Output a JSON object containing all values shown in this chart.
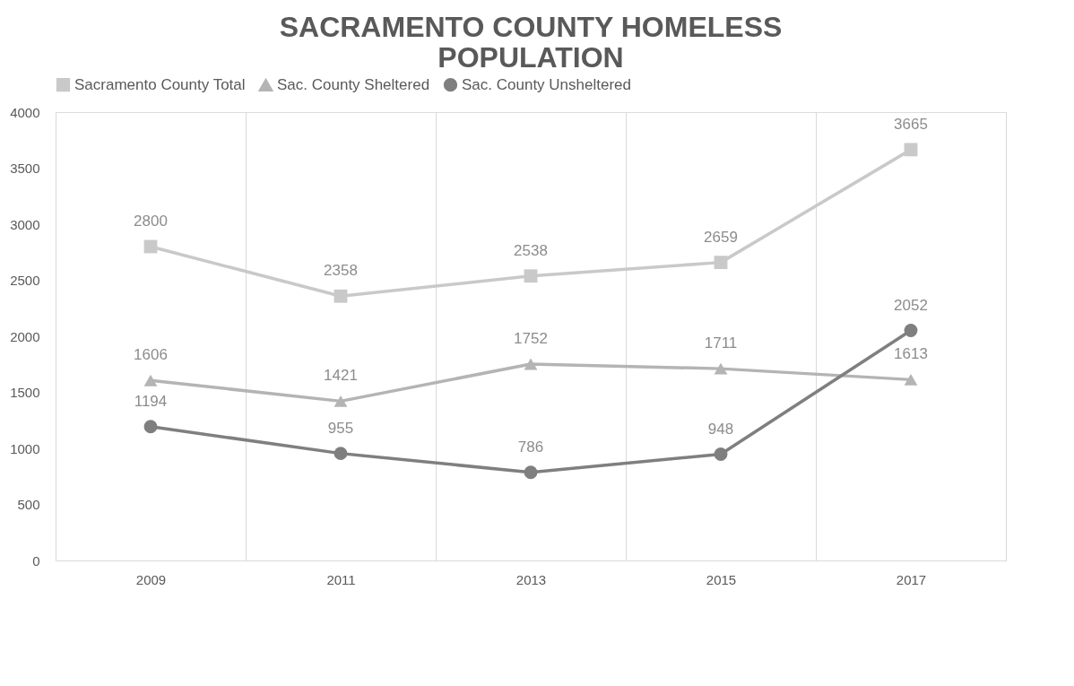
{
  "chart_data": {
    "type": "line",
    "title": "SACRAMENTO COUNTY HOMELESS POPULATION",
    "categories": [
      "2009",
      "2011",
      "2013",
      "2015",
      "2017"
    ],
    "series": [
      {
        "name": "Sacramento County Total",
        "color": "#c9c9c9",
        "marker": "square",
        "values": [
          2800,
          2358,
          2538,
          2659,
          3665
        ]
      },
      {
        "name": "Sac. County Sheltered",
        "color": "#b4b4b4",
        "marker": "triangle",
        "values": [
          1606,
          1421,
          1752,
          1711,
          1613
        ]
      },
      {
        "name": "Sac. County Unsheltered",
        "color": "#7f7f7f",
        "marker": "circle",
        "values": [
          1194,
          955,
          786,
          948,
          2052
        ]
      }
    ],
    "ylim": [
      0,
      4000
    ],
    "yticks": [
      0,
      500,
      1000,
      1500,
      2000,
      2500,
      3000,
      3500,
      4000
    ],
    "grid": "x",
    "legend": "top",
    "data_labels": true,
    "line_style": "solid"
  }
}
